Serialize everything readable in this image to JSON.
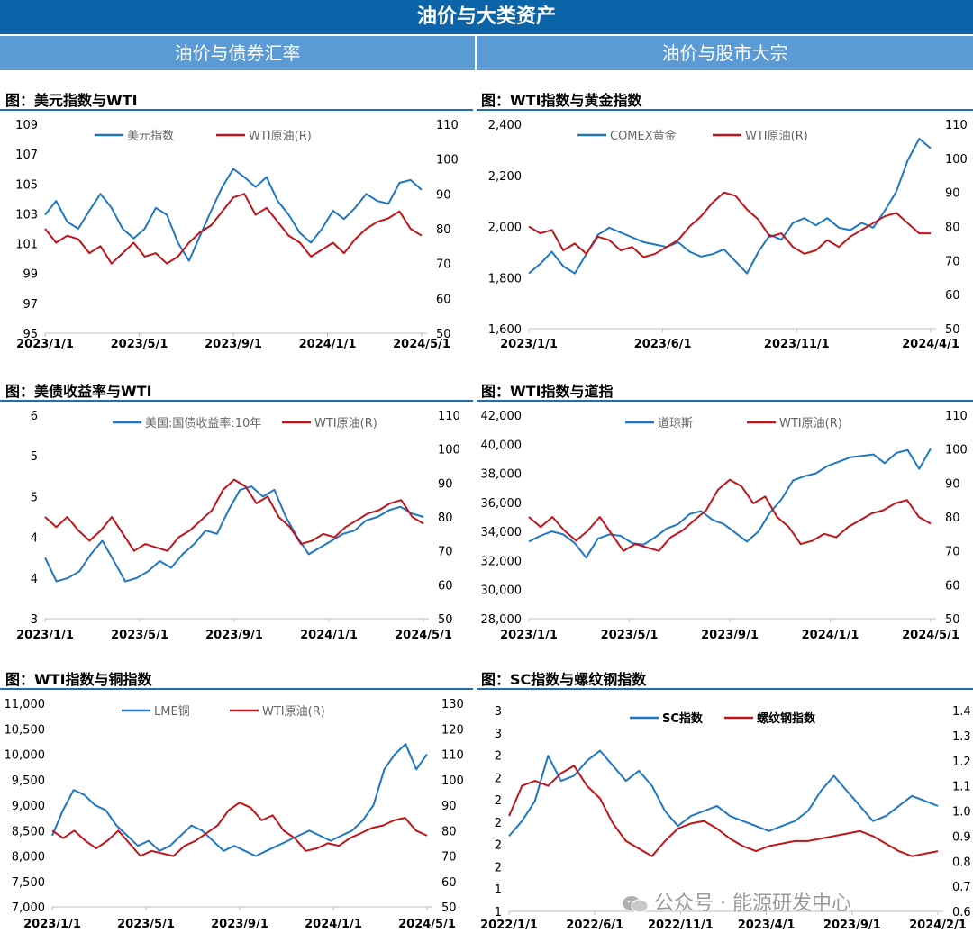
{
  "header": {
    "title": "油价与大类资产",
    "left_section": "油价与债券汇率",
    "right_section": "油价与股市大宗"
  },
  "watermark": "公众号 · 能源研发中心",
  "colors": {
    "blue": "#1f77c4",
    "red": "#c0141a",
    "banner": "#0b63a8",
    "subheader": "#5b9bd5"
  },
  "chart_data": [
    {
      "id": "c1",
      "type": "line",
      "title": "图：美元指数与WTI",
      "x_ticks": [
        "2023/1/1",
        "2023/5/1",
        "2023/9/1",
        "2024/1/1",
        "2024/5/1"
      ],
      "y_left": {
        "ticks": [
          "109",
          "107",
          "105",
          "103",
          "101",
          "99",
          "97",
          "95"
        ],
        "range": [
          95,
          110
        ]
      },
      "y_right": {
        "ticks": [
          "110",
          "100",
          "90",
          "80",
          "70",
          "60",
          "50"
        ],
        "range": [
          50,
          110
        ]
      },
      "series": [
        {
          "name": "美元指数",
          "axis": "left",
          "color": "#1f77c4",
          "values": [
            103.5,
            104.5,
            103,
            102.5,
            103.8,
            105,
            104,
            102.5,
            101.8,
            102.5,
            104,
            103.5,
            101.5,
            100.2,
            102,
            103.8,
            105.5,
            106.8,
            106.2,
            105.5,
            106.2,
            104.5,
            103.5,
            102.2,
            101.5,
            102.5,
            103.8,
            103.2,
            104,
            105,
            104.5,
            104.3,
            105.8,
            106,
            105.3
          ]
        },
        {
          "name": "WTI原油(R)",
          "axis": "right",
          "color": "#c0141a",
          "values": [
            80,
            76,
            78,
            77,
            73,
            75,
            70,
            73,
            76,
            72,
            73,
            70,
            72,
            76,
            79,
            81,
            85,
            89,
            90,
            84,
            86,
            82,
            78,
            76,
            72,
            74,
            76,
            73,
            77,
            80,
            82,
            83,
            85,
            80,
            78
          ]
        }
      ]
    },
    {
      "id": "c2",
      "type": "line",
      "title": "图：WTI指数与黄金指数",
      "x_ticks": [
        "2023/1/1",
        "2023/6/1",
        "2023/11/1",
        "2024/4/1"
      ],
      "y_left": {
        "ticks": [
          "2,400",
          "2,200",
          "2,000",
          "1,800",
          "1,600"
        ],
        "range": [
          1600,
          2450
        ]
      },
      "y_right": {
        "ticks": [
          "110",
          "100",
          "90",
          "80",
          "70",
          "60",
          "50"
        ],
        "range": [
          50,
          110
        ]
      },
      "series": [
        {
          "name": "COMEX黄金",
          "axis": "left",
          "color": "#1f77c4",
          "values": [
            1830,
            1870,
            1920,
            1860,
            1830,
            1910,
            1990,
            2020,
            2000,
            1980,
            1960,
            1950,
            1940,
            1960,
            1920,
            1900,
            1910,
            1930,
            1880,
            1830,
            1920,
            1990,
            1970,
            2040,
            2060,
            2030,
            2060,
            2020,
            2010,
            2040,
            2020,
            2090,
            2170,
            2300,
            2390,
            2350
          ]
        },
        {
          "name": "WTI原油(R)",
          "axis": "right",
          "color": "#c0141a",
          "values": [
            80,
            78,
            79,
            73,
            75,
            72,
            77,
            76,
            73,
            74,
            71,
            72,
            74,
            76,
            80,
            83,
            87,
            90,
            89,
            85,
            82,
            77,
            78,
            74,
            72,
            73,
            76,
            74,
            77,
            79,
            81,
            83,
            84,
            81,
            78,
            78
          ]
        }
      ]
    },
    {
      "id": "c3",
      "type": "line",
      "title": "图：美债收益率与WTI",
      "x_ticks": [
        "2023/1/1",
        "2023/5/1",
        "2023/9/1",
        "2024/1/1",
        "2024/5/1"
      ],
      "y_left": {
        "ticks": [
          "6",
          "5",
          "5",
          "4",
          "4",
          "3"
        ],
        "range": [
          3,
          6
        ]
      },
      "y_right": {
        "ticks": [
          "110",
          "100",
          "90",
          "80",
          "70",
          "60",
          "50"
        ],
        "range": [
          50,
          110
        ]
      },
      "series": [
        {
          "name": "美国:国债收益率:10年",
          "axis": "left",
          "color": "#1f77c4",
          "values": [
            3.9,
            3.55,
            3.6,
            3.7,
            3.95,
            4.15,
            3.85,
            3.55,
            3.6,
            3.7,
            3.85,
            3.75,
            3.95,
            4.1,
            4.3,
            4.25,
            4.6,
            4.9,
            4.95,
            4.8,
            4.9,
            4.5,
            4.2,
            3.95,
            4.05,
            4.15,
            4.25,
            4.3,
            4.45,
            4.5,
            4.6,
            4.65,
            4.55,
            4.5
          ]
        },
        {
          "name": "WTI原油(R)",
          "axis": "right",
          "color": "#c0141a",
          "values": [
            80,
            77,
            80,
            76,
            73,
            76,
            80,
            75,
            70,
            72,
            71,
            70,
            74,
            76,
            79,
            82,
            88,
            91,
            89,
            84,
            86,
            80,
            77,
            72,
            73,
            75,
            74,
            77,
            79,
            81,
            82,
            84,
            85,
            80,
            78
          ]
        }
      ]
    },
    {
      "id": "c4",
      "type": "line",
      "title": "图：WTI指数与道指",
      "x_ticks": [
        "2023/1/1",
        "2023/5/1",
        "2023/9/1",
        "2024/1/1",
        "2024/5/1"
      ],
      "y_left": {
        "ticks": [
          "42,000",
          "40,000",
          "38,000",
          "36,000",
          "34,000",
          "32,000",
          "30,000",
          "28,000"
        ],
        "range": [
          28000,
          42000
        ]
      },
      "y_right": {
        "ticks": [
          "110",
          "100",
          "90",
          "80",
          "70",
          "60",
          "50"
        ],
        "range": [
          50,
          110
        ]
      },
      "series": [
        {
          "name": "道琼斯",
          "axis": "left",
          "color": "#1f77c4",
          "values": [
            33300,
            33700,
            34000,
            33800,
            33200,
            32200,
            33500,
            33800,
            33700,
            33200,
            33100,
            33600,
            34200,
            34500,
            35200,
            35400,
            34800,
            34500,
            33900,
            33300,
            34000,
            35300,
            36200,
            37500,
            37800,
            38000,
            38500,
            38800,
            39100,
            39200,
            39300,
            38700,
            39400,
            39600,
            38300,
            39700
          ]
        },
        {
          "name": "WTI原油(R)",
          "axis": "right",
          "color": "#c0141a",
          "values": [
            80,
            77,
            80,
            76,
            73,
            76,
            80,
            75,
            70,
            72,
            71,
            70,
            74,
            76,
            79,
            82,
            88,
            91,
            89,
            84,
            86,
            80,
            77,
            72,
            73,
            75,
            74,
            77,
            79,
            81,
            82,
            84,
            85,
            80,
            78
          ]
        }
      ]
    },
    {
      "id": "c5",
      "type": "line",
      "title": "图：WTI指数与铜指数",
      "x_ticks": [
        "2023/1/1",
        "2023/5/1",
        "2023/9/1",
        "2024/1/1",
        "2024/5/1"
      ],
      "y_left": {
        "ticks": [
          "11,000",
          "10,500",
          "10,000",
          "9,500",
          "9,000",
          "8,500",
          "8,000",
          "7,500",
          "7,000"
        ],
        "range": [
          7000,
          11000
        ]
      },
      "y_right": {
        "ticks": [
          "130",
          "120",
          "110",
          "100",
          "90",
          "80",
          "70",
          "60",
          "50"
        ],
        "range": [
          50,
          130
        ]
      },
      "series": [
        {
          "name": "LME铜",
          "axis": "left",
          "color": "#1f77c4",
          "values": [
            8400,
            8900,
            9300,
            9200,
            9000,
            8900,
            8600,
            8400,
            8200,
            8300,
            8100,
            8200,
            8400,
            8600,
            8500,
            8300,
            8100,
            8200,
            8100,
            8000,
            8100,
            8200,
            8300,
            8400,
            8500,
            8400,
            8300,
            8400,
            8500,
            8700,
            9000,
            9700,
            10000,
            10200,
            9700,
            10000
          ]
        },
        {
          "name": "WTI原油(R)",
          "axis": "right",
          "color": "#c0141a",
          "values": [
            80,
            77,
            80,
            76,
            73,
            76,
            80,
            75,
            70,
            72,
            71,
            70,
            74,
            76,
            79,
            82,
            88,
            91,
            89,
            84,
            86,
            80,
            77,
            72,
            73,
            75,
            74,
            77,
            79,
            81,
            82,
            84,
            85,
            80,
            78
          ]
        }
      ]
    },
    {
      "id": "c6",
      "type": "line",
      "title": "图：SC指数与螺纹钢指数",
      "x_ticks": [
        "2022/1/1",
        "2022/6/1",
        "2022/11/1",
        "2023/4/1",
        "2023/9/1",
        "2024/2/1"
      ],
      "y_left": {
        "ticks": [
          "3",
          "3",
          "2",
          "2",
          "2",
          "2",
          "2",
          "2",
          "1",
          "1"
        ],
        "range": [
          1,
          3
        ]
      },
      "y_right": {
        "ticks": [
          "1.4",
          "1.3",
          "1.2",
          "1.1",
          "1.0",
          "0.9",
          "0.8",
          "0.7",
          "0.6"
        ],
        "range": [
          0.6,
          1.4
        ]
      },
      "series": [
        {
          "name": "SC指数",
          "axis": "left",
          "color": "#1f77c4",
          "values": [
            1.75,
            1.9,
            2.1,
            2.55,
            2.3,
            2.35,
            2.5,
            2.6,
            2.45,
            2.3,
            2.4,
            2.25,
            2.0,
            1.85,
            1.95,
            2.0,
            2.05,
            1.95,
            1.9,
            1.85,
            1.8,
            1.85,
            1.9,
            2.0,
            2.2,
            2.35,
            2.2,
            2.05,
            1.9,
            1.95,
            2.05,
            2.15,
            2.1,
            2.05
          ]
        },
        {
          "name": "螺纹钢指数",
          "axis": "right",
          "color": "#c0141a",
          "values": [
            0.98,
            1.1,
            1.12,
            1.1,
            1.15,
            1.18,
            1.1,
            1.05,
            0.95,
            0.88,
            0.85,
            0.82,
            0.88,
            0.93,
            0.95,
            0.96,
            0.93,
            0.89,
            0.86,
            0.84,
            0.86,
            0.87,
            0.88,
            0.88,
            0.89,
            0.9,
            0.91,
            0.92,
            0.9,
            0.87,
            0.84,
            0.82,
            0.83,
            0.84
          ]
        }
      ]
    }
  ]
}
